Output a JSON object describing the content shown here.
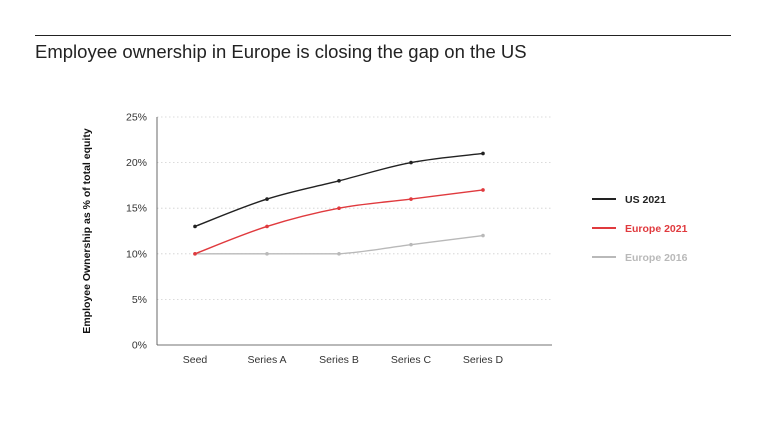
{
  "chart_data": {
    "type": "line",
    "title": "Employee ownership in Europe is closing the gap on the US",
    "xlabel": "",
    "ylabel": "Employee Ownership as % of total equity",
    "categories": [
      "Seed",
      "Series A",
      "Series B",
      "Series C",
      "Series D"
    ],
    "ylim": [
      0,
      25
    ],
    "yticks": [
      "0%",
      "5%",
      "10%",
      "15%",
      "20%",
      "25%"
    ],
    "grid": "horizontal dotted",
    "legend": "right",
    "series": [
      {
        "name": "US 2021",
        "values": [
          13,
          16,
          18,
          20,
          21
        ],
        "color": "#222222"
      },
      {
        "name": "Europe 2021",
        "values": [
          10,
          13,
          15,
          16,
          17
        ],
        "color": "#e03a3e"
      },
      {
        "name": "Europe 2016",
        "values": [
          10,
          10,
          10,
          11,
          12
        ],
        "color": "#b9b9b9"
      }
    ]
  }
}
